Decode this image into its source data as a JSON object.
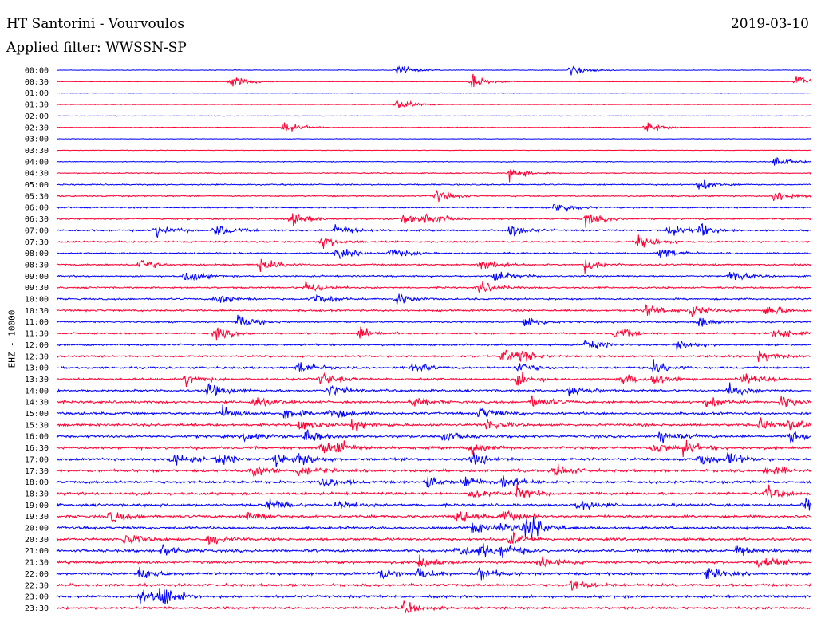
{
  "header": {
    "station": "HT Santorini - Vourvoulos",
    "date": "2019-03-10",
    "filter": "Applied filter: WWSSN-SP"
  },
  "chart_data": {
    "type": "line",
    "channel_label": "EHZ - 10000",
    "colors": {
      "even_rows": "#0000ff",
      "odd_rows": "#ff0033"
    },
    "rows": [
      {
        "label": "00:00",
        "amplitude": 0.1,
        "events": [
          0.45,
          0.68
        ]
      },
      {
        "label": "00:30",
        "amplitude": 0.08,
        "events": [
          0.23,
          0.55,
          0.98
        ]
      },
      {
        "label": "01:00",
        "amplitude": 0.1,
        "events": []
      },
      {
        "label": "01:30",
        "amplitude": 0.1,
        "events": [
          0.45
        ]
      },
      {
        "label": "02:00",
        "amplitude": 0.08,
        "events": []
      },
      {
        "label": "02:30",
        "amplitude": 0.12,
        "events": [
          0.3,
          0.78
        ]
      },
      {
        "label": "03:00",
        "amplitude": 0.1,
        "events": []
      },
      {
        "label": "03:30",
        "amplitude": 0.1,
        "events": []
      },
      {
        "label": "04:00",
        "amplitude": 0.14,
        "events": [
          0.95
        ]
      },
      {
        "label": "04:30",
        "amplitude": 0.18,
        "events": [
          0.6
        ]
      },
      {
        "label": "05:00",
        "amplitude": 0.22,
        "events": [
          0.85
        ]
      },
      {
        "label": "05:30",
        "amplitude": 0.24,
        "events": [
          0.5,
          0.95
        ]
      },
      {
        "label": "06:00",
        "amplitude": 0.26,
        "events": [
          0.66
        ]
      },
      {
        "label": "06:30",
        "amplitude": 0.3,
        "events": [
          0.31,
          0.46,
          0.49,
          0.7
        ]
      },
      {
        "label": "07:00",
        "amplitude": 0.32,
        "events": [
          0.13,
          0.21,
          0.37,
          0.6,
          0.81,
          0.85
        ]
      },
      {
        "label": "07:30",
        "amplitude": 0.3,
        "events": [
          0.35,
          0.77
        ]
      },
      {
        "label": "08:00",
        "amplitude": 0.28,
        "events": [
          0.37,
          0.44,
          0.8
        ]
      },
      {
        "label": "08:30",
        "amplitude": 0.3,
        "events": [
          0.11,
          0.27,
          0.56,
          0.7
        ]
      },
      {
        "label": "09:00",
        "amplitude": 0.28,
        "events": [
          0.17,
          0.58,
          0.89
        ]
      },
      {
        "label": "09:30",
        "amplitude": 0.3,
        "events": [
          0.33,
          0.56
        ]
      },
      {
        "label": "10:00",
        "amplitude": 0.3,
        "events": [
          0.21,
          0.34,
          0.45
        ]
      },
      {
        "label": "10:30",
        "amplitude": 0.32,
        "events": [
          0.78,
          0.84,
          0.94
        ]
      },
      {
        "label": "11:00",
        "amplitude": 0.3,
        "events": [
          0.24,
          0.62,
          0.85
        ]
      },
      {
        "label": "11:30",
        "amplitude": 0.3,
        "events": [
          0.21,
          0.4,
          0.74,
          0.95
        ]
      },
      {
        "label": "12:00",
        "amplitude": 0.32,
        "events": [
          0.7,
          0.82
        ]
      },
      {
        "label": "12:30",
        "amplitude": 0.34,
        "events": [
          0.59,
          0.61,
          0.93
        ]
      },
      {
        "label": "13:00",
        "amplitude": 0.36,
        "events": [
          0.32,
          0.47,
          0.61,
          0.79
        ]
      },
      {
        "label": "13:30",
        "amplitude": 0.38,
        "events": [
          0.17,
          0.35,
          0.61,
          0.75,
          0.79,
          0.91
        ]
      },
      {
        "label": "14:00",
        "amplitude": 0.4,
        "events": [
          0.2,
          0.36,
          0.68,
          0.89
        ]
      },
      {
        "label": "14:30",
        "amplitude": 0.42,
        "events": [
          0.26,
          0.47,
          0.63,
          0.86,
          0.96
        ]
      },
      {
        "label": "15:00",
        "amplitude": 0.44,
        "events": [
          0.22,
          0.3,
          0.36,
          0.56
        ]
      },
      {
        "label": "15:30",
        "amplitude": 0.44,
        "events": [
          0.32,
          0.39,
          0.57,
          0.93,
          0.97
        ]
      },
      {
        "label": "16:00",
        "amplitude": 0.46,
        "events": [
          0.25,
          0.33,
          0.51,
          0.8,
          0.97
        ]
      },
      {
        "label": "16:30",
        "amplitude": 0.46,
        "events": [
          0.35,
          0.37,
          0.55,
          0.79,
          0.83
        ]
      },
      {
        "label": "17:00",
        "amplitude": 0.46,
        "events": [
          0.15,
          0.21,
          0.29,
          0.32,
          0.55,
          0.85,
          0.89
        ]
      },
      {
        "label": "17:30",
        "amplitude": 0.46,
        "events": [
          0.26,
          0.32,
          0.66,
          0.94
        ]
      },
      {
        "label": "18:00",
        "amplitude": 0.46,
        "events": [
          0.35,
          0.49,
          0.54,
          0.59
        ]
      },
      {
        "label": "18:30",
        "amplitude": 0.46,
        "events": [
          0.55,
          0.61,
          0.94
        ]
      },
      {
        "label": "19:00",
        "amplitude": 0.46,
        "events": [
          0.28,
          0.37,
          0.69,
          0.99
        ]
      },
      {
        "label": "19:30",
        "amplitude": 0.46,
        "events": [
          0.07,
          0.25,
          0.53,
          0.59
        ]
      },
      {
        "label": "20:00",
        "amplitude": 0.46,
        "events": [
          0.55,
          0.59,
          0.62,
          0.63
        ]
      },
      {
        "label": "20:30",
        "amplitude": 0.46,
        "events": [
          0.09,
          0.2,
          0.6
        ]
      },
      {
        "label": "21:00",
        "amplitude": 0.46,
        "events": [
          0.14,
          0.53,
          0.56,
          0.59,
          0.9
        ]
      },
      {
        "label": "21:30",
        "amplitude": 0.46,
        "events": [
          0.48,
          0.64,
          0.93
        ]
      },
      {
        "label": "22:00",
        "amplitude": 0.46,
        "events": [
          0.11,
          0.43,
          0.48,
          0.56,
          0.86
        ]
      },
      {
        "label": "22:30",
        "amplitude": 0.46,
        "events": [
          0.68
        ]
      },
      {
        "label": "23:00",
        "amplitude": 0.46,
        "events": [
          0.11,
          0.13,
          0.14
        ]
      },
      {
        "label": "23:30",
        "amplitude": 0.42,
        "events": [
          0.46
        ]
      }
    ]
  }
}
